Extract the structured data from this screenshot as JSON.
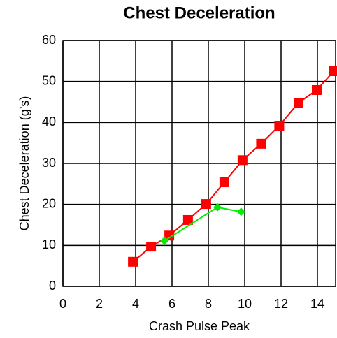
{
  "chart_data": {
    "type": "line",
    "title": "Chest Deceleration",
    "xlabel": "Crash Pulse Peak",
    "ylabel": "Chest Deceleration (g’s)",
    "xlim": [
      0,
      15
    ],
    "xticks": [
      0,
      2,
      4,
      6,
      8,
      10,
      12,
      14
    ],
    "ylim": [
      0,
      60
    ],
    "yticks": [
      0,
      10,
      20,
      30,
      40,
      50,
      60
    ],
    "grid": true,
    "series": [
      {
        "color": "#ff0000",
        "marker": "square",
        "x": [
          3.85,
          4.85,
          5.85,
          6.88,
          7.88,
          8.88,
          9.88,
          10.9,
          11.9,
          12.96,
          13.96,
          14.9
        ],
        "values": [
          6.0,
          9.7,
          12.4,
          16.2,
          20.1,
          25.4,
          30.8,
          34.8,
          39.2,
          44.8,
          47.9,
          52.5
        ]
      },
      {
        "color": "#00ee00",
        "marker": "diamond",
        "x": [
          5.58,
          8.5,
          9.8
        ],
        "values": [
          11.1,
          19.3,
          18.2
        ]
      }
    ]
  }
}
